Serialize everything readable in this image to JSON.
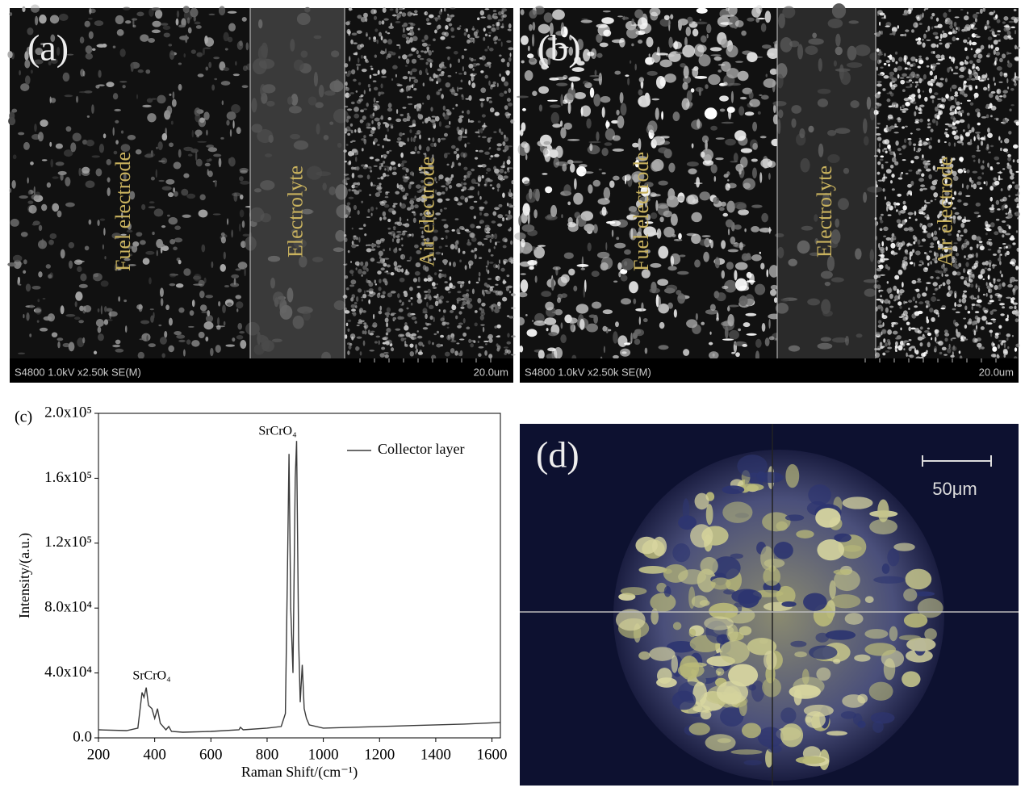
{
  "panels": {
    "a": {
      "label": "(a)",
      "layers": [
        "Fuel electrode",
        "Electrolyte",
        "Air electrode"
      ],
      "info": "S4800 1.0kV x2.50k SE(M)",
      "scale": "20.0um"
    },
    "b": {
      "label": "(b)",
      "layers": [
        "Fuel electrode",
        "Electrolyte",
        "Air electrode"
      ],
      "info": "S4800 1.0kV x2.50k SE(M)",
      "scale": "20.0um"
    },
    "d": {
      "label": "(d)",
      "scale": "50μm"
    }
  },
  "chart_data": {
    "type": "line",
    "label": "(c)",
    "xlabel": "Raman Shift/(cm⁻¹)",
    "ylabel": "Intensity/(a.u.)",
    "annotations": [
      "SrCrO₄",
      "SrCrO₄"
    ],
    "x": [
      200,
      300,
      340,
      355,
      362,
      370,
      378,
      390,
      400,
      410,
      420,
      440,
      450,
      460,
      500,
      600,
      700,
      705,
      715,
      800,
      850,
      865,
      872,
      878,
      884,
      892,
      900,
      905,
      912,
      918,
      925,
      932,
      940,
      950,
      1000,
      1100,
      1200,
      1300,
      1400,
      1500,
      1630
    ],
    "series": [
      {
        "name": "Collector layer",
        "color": "#3a3a3a",
        "values": [
          5000,
          4500,
          6000,
          28000,
          25000,
          31000,
          20000,
          18000,
          12000,
          18000,
          9000,
          5000,
          7000,
          4000,
          3500,
          4000,
          5000,
          6500,
          5000,
          6000,
          7000,
          15000,
          97000,
          175000,
          80000,
          40000,
          160000,
          183000,
          60000,
          22000,
          45000,
          18000,
          12000,
          8000,
          6000,
          6500,
          7000,
          7500,
          8000,
          8500,
          9500
        ]
      }
    ],
    "xlim": [
      200,
      1630
    ],
    "xticks": [
      200,
      400,
      600,
      800,
      1000,
      1200,
      1400,
      1600
    ],
    "ylim": [
      0,
      200000
    ],
    "yticks": [
      {
        "value": 0,
        "label": "0.0"
      },
      {
        "value": 40000,
        "label": "4.0x10⁴"
      },
      {
        "value": 80000,
        "label": "8.0x10⁴"
      },
      {
        "value": 120000,
        "label": "1.2x10⁵"
      },
      {
        "value": 160000,
        "label": "1.6x10⁵"
      },
      {
        "value": 200000,
        "label": "2.0x10⁵"
      }
    ],
    "grid": false,
    "legend": "upper right"
  }
}
